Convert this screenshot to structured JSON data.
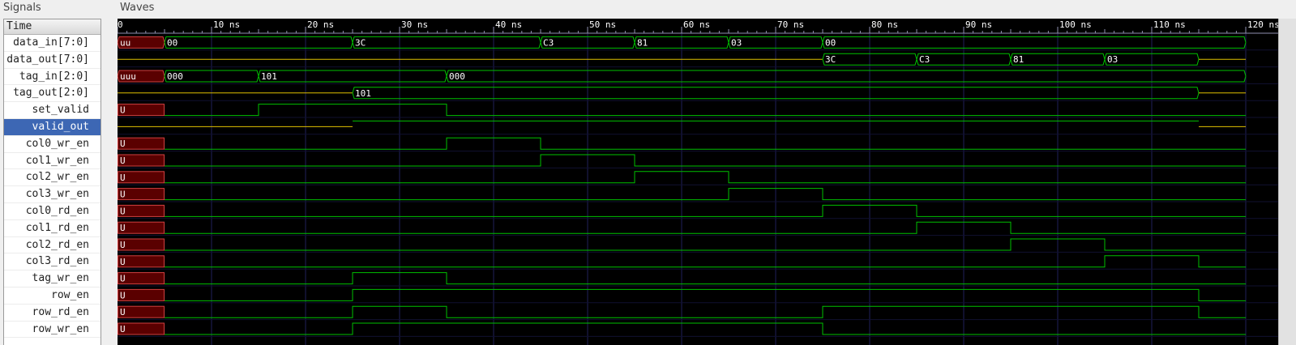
{
  "panels": {
    "signals_title": "Signals",
    "waves_title": "Waves"
  },
  "time_header": "Time",
  "timeline": {
    "unit": "ns",
    "start": 0,
    "end": 120,
    "major_step": 10,
    "minor_step": 1,
    "tick_labels": [
      "0",
      "10 ns",
      "20 ns",
      "30 ns",
      "40 ns",
      "50 ns",
      "60 ns",
      "70 ns",
      "80 ns",
      "90 ns",
      "100 ns",
      "110 ns",
      "120 ns"
    ]
  },
  "colors": {
    "wave": "#00c000",
    "bus_high_z": "#e0c000",
    "undefined_fill": "#5a0000",
    "undefined_stroke": "#d04040",
    "grid": "#20205a",
    "ruler_bg": "#000000",
    "ruler_text": "#ffffff",
    "label_text": "#ffffff",
    "selected_row": "#3d67b4"
  },
  "signals": [
    {
      "name": "data_in[7:0]",
      "type": "bus",
      "segments": [
        {
          "t0": 0,
          "t1": 5,
          "v": "uu",
          "u": true
        },
        {
          "t0": 5,
          "t1": 25,
          "v": "00"
        },
        {
          "t0": 25,
          "t1": 45,
          "v": "3C"
        },
        {
          "t0": 45,
          "t1": 55,
          "v": "C3"
        },
        {
          "t0": 55,
          "t1": 65,
          "v": "81"
        },
        {
          "t0": 65,
          "t1": 75,
          "v": "03"
        },
        {
          "t0": 75,
          "t1": 120,
          "v": "00"
        }
      ]
    },
    {
      "name": "data_out[7:0]",
      "type": "bus",
      "segments": [
        {
          "t0": 0,
          "t1": 75,
          "v": "",
          "z": true
        },
        {
          "t0": 75,
          "t1": 85,
          "v": "3C"
        },
        {
          "t0": 85,
          "t1": 95,
          "v": "C3"
        },
        {
          "t0": 95,
          "t1": 105,
          "v": "81"
        },
        {
          "t0": 105,
          "t1": 115,
          "v": "03"
        },
        {
          "t0": 115,
          "t1": 120,
          "v": "",
          "z": true
        }
      ]
    },
    {
      "name": "tag_in[2:0]",
      "type": "bus",
      "segments": [
        {
          "t0": 0,
          "t1": 5,
          "v": "uuu",
          "u": true
        },
        {
          "t0": 5,
          "t1": 15,
          "v": "000"
        },
        {
          "t0": 15,
          "t1": 35,
          "v": "101"
        },
        {
          "t0": 35,
          "t1": 120,
          "v": "000"
        }
      ]
    },
    {
      "name": "tag_out[2:0]",
      "type": "bus",
      "segments": [
        {
          "t0": 0,
          "t1": 25,
          "v": "",
          "z": true
        },
        {
          "t0": 25,
          "t1": 115,
          "v": "101"
        },
        {
          "t0": 115,
          "t1": 120,
          "v": "",
          "z": true
        }
      ]
    },
    {
      "name": "set_valid",
      "type": "bit",
      "undef_until": 5,
      "label": "U",
      "highs": [
        [
          15,
          35
        ]
      ]
    },
    {
      "name": "valid_out",
      "type": "bit",
      "selected": true,
      "z_ranges": [
        [
          0,
          25
        ],
        [
          115,
          120
        ]
      ],
      "highs": [
        [
          25,
          115
        ]
      ]
    },
    {
      "name": "col0_wr_en",
      "type": "bit",
      "undef_until": 5,
      "label": "U",
      "highs": [
        [
          35,
          45
        ]
      ]
    },
    {
      "name": "col1_wr_en",
      "type": "bit",
      "undef_until": 5,
      "label": "U",
      "highs": [
        [
          45,
          55
        ]
      ]
    },
    {
      "name": "col2_wr_en",
      "type": "bit",
      "undef_until": 5,
      "label": "U",
      "highs": [
        [
          55,
          65
        ]
      ]
    },
    {
      "name": "col3_wr_en",
      "type": "bit",
      "undef_until": 5,
      "label": "U",
      "highs": [
        [
          65,
          75
        ]
      ]
    },
    {
      "name": "col0_rd_en",
      "type": "bit",
      "undef_until": 5,
      "label": "U",
      "highs": [
        [
          75,
          85
        ]
      ]
    },
    {
      "name": "col1_rd_en",
      "type": "bit",
      "undef_until": 5,
      "label": "U",
      "highs": [
        [
          85,
          95
        ]
      ]
    },
    {
      "name": "col2_rd_en",
      "type": "bit",
      "undef_until": 5,
      "label": "U",
      "highs": [
        [
          95,
          105
        ]
      ]
    },
    {
      "name": "col3_rd_en",
      "type": "bit",
      "undef_until": 5,
      "label": "U",
      "highs": [
        [
          105,
          115
        ]
      ]
    },
    {
      "name": "tag_wr_en",
      "type": "bit",
      "undef_until": 5,
      "label": "U",
      "highs": [
        [
          25,
          35
        ]
      ]
    },
    {
      "name": "row_en",
      "type": "bit",
      "undef_until": 5,
      "label": "U",
      "highs": [
        [
          25,
          115
        ]
      ]
    },
    {
      "name": "row_rd_en",
      "type": "bit",
      "undef_until": 5,
      "label": "U",
      "highs": [
        [
          25,
          35
        ],
        [
          75,
          115
        ]
      ]
    },
    {
      "name": "row_wr_en",
      "type": "bit",
      "undef_until": 5,
      "label": "U",
      "highs": [
        [
          25,
          75
        ]
      ]
    }
  ]
}
